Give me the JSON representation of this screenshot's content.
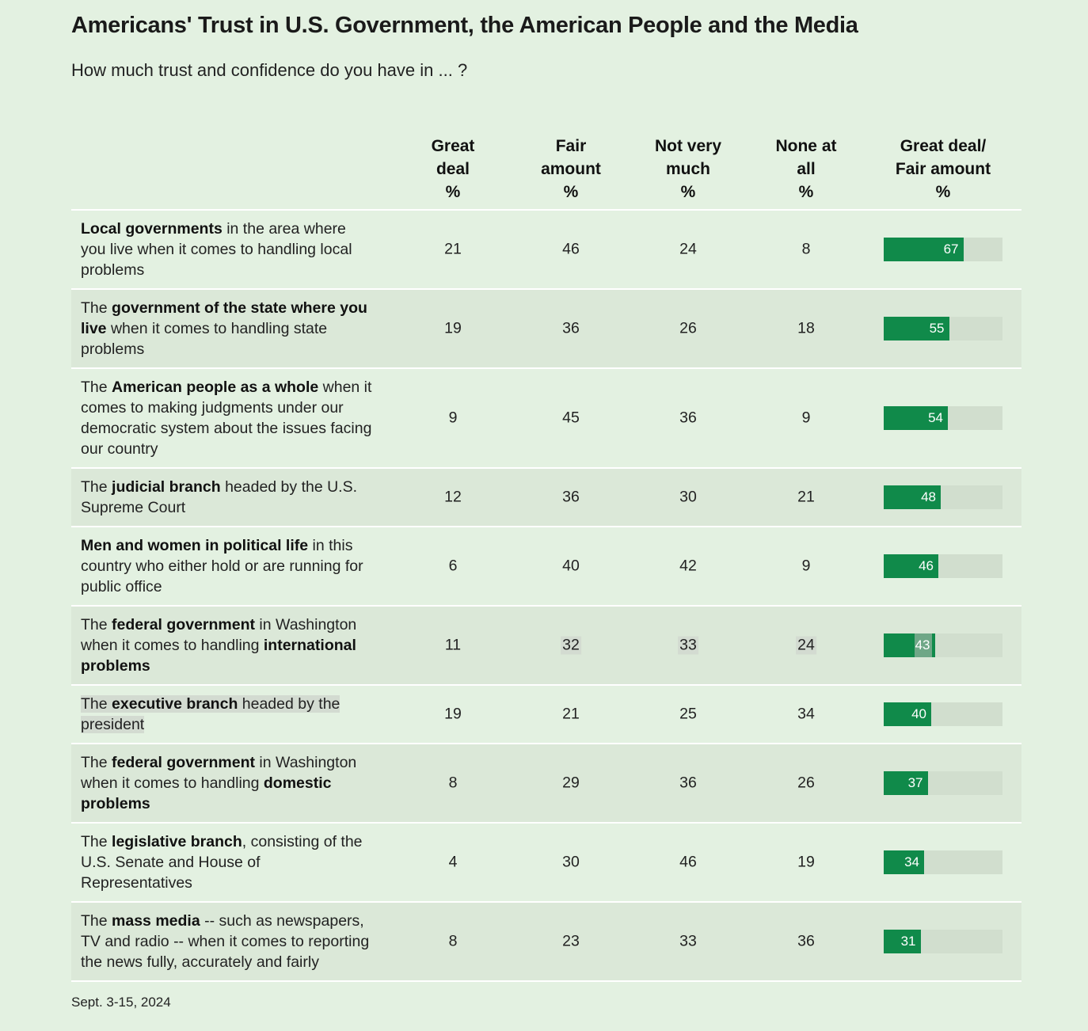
{
  "title": "Americans' Trust in U.S. Government, the American People and the Media",
  "subtitle": "How much trust and confidence do you have in ... ?",
  "columns": [
    {
      "lines": [
        "Great",
        "deal",
        "%"
      ]
    },
    {
      "lines": [
        "Fair",
        "amount",
        "%"
      ]
    },
    {
      "lines": [
        "Not very",
        "much",
        "%"
      ]
    },
    {
      "lines": [
        "None at",
        "all",
        "%"
      ]
    },
    {
      "lines": [
        "Great deal/",
        "Fair amount",
        "%"
      ]
    }
  ],
  "footer": "Sept. 3-15, 2024",
  "colors": {
    "bar": "#108a4a",
    "track": "#d1dece",
    "background": "#e3f1e1",
    "highlight": "#d3dbd1"
  },
  "chart_data": {
    "type": "table",
    "title": "Americans' Trust in U.S. Government, the American People and the Media",
    "subtitle": "How much trust and confidence do you have in ... ?",
    "columns": [
      "Great deal %",
      "Fair amount %",
      "Not very much %",
      "None at all %",
      "Great deal/ Fair amount %"
    ],
    "bar_column": "Great deal/ Fair amount %",
    "bar_max": 100,
    "rows": [
      {
        "label": [
          [
            "Local governments",
            true
          ],
          [
            " in the area where you live when it comes to handling local problems",
            false
          ]
        ],
        "values": [
          21,
          46,
          24,
          8,
          67
        ]
      },
      {
        "label": [
          [
            "The ",
            false
          ],
          [
            "government of the state where you live",
            true
          ],
          [
            " when it comes to handling state problems",
            false
          ]
        ],
        "values": [
          19,
          36,
          26,
          18,
          55
        ]
      },
      {
        "label": [
          [
            "The ",
            false
          ],
          [
            "American people as a whole",
            true
          ],
          [
            " when it comes to making judgments under our democratic system about the issues facing our country",
            false
          ]
        ],
        "values": [
          9,
          45,
          36,
          9,
          54
        ]
      },
      {
        "label": [
          [
            "The ",
            false
          ],
          [
            "judicial branch",
            true
          ],
          [
            " headed by the U.S. Supreme Court",
            false
          ]
        ],
        "values": [
          12,
          36,
          30,
          21,
          48
        ]
      },
      {
        "label": [
          [
            "Men and women in political life",
            true
          ],
          [
            " in this country who either hold or are running for public office",
            false
          ]
        ],
        "values": [
          6,
          40,
          42,
          9,
          46
        ]
      },
      {
        "label": [
          [
            "The ",
            false
          ],
          [
            "federal government",
            true
          ],
          [
            " in Washington when it comes to handling ",
            false
          ],
          [
            "international problems",
            true
          ]
        ],
        "values": [
          11,
          32,
          33,
          24,
          43
        ],
        "highlight_cells": [
          1,
          2,
          3
        ],
        "bar_highlight": true
      },
      {
        "label": [
          [
            "The ",
            false
          ],
          [
            "executive branch",
            true
          ],
          [
            " headed by the president",
            false
          ]
        ],
        "values": [
          19,
          21,
          25,
          34,
          40
        ],
        "highlight_label": true
      },
      {
        "label": [
          [
            "The ",
            false
          ],
          [
            "federal government",
            true
          ],
          [
            " in Washington when it comes to handling ",
            false
          ],
          [
            "domestic problems",
            true
          ]
        ],
        "values": [
          8,
          29,
          36,
          26,
          37
        ]
      },
      {
        "label": [
          [
            "The ",
            false
          ],
          [
            "legislative branch",
            true
          ],
          [
            ", consisting of the U.S. Senate and House of Representatives",
            false
          ]
        ],
        "values": [
          4,
          30,
          46,
          19,
          34
        ]
      },
      {
        "label": [
          [
            "The ",
            false
          ],
          [
            "mass media",
            true
          ],
          [
            " -- such as newspapers, TV and radio -- when it comes to reporting the news fully, accurately and fairly",
            false
          ]
        ],
        "values": [
          8,
          23,
          33,
          36,
          31
        ]
      }
    ]
  }
}
